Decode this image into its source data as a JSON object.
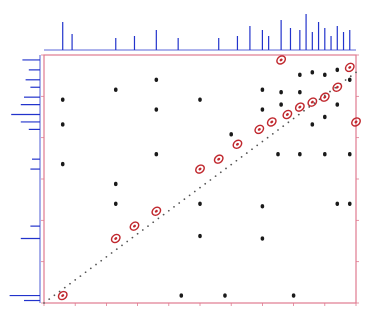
{
  "chart_data": {
    "type": "scatter",
    "subtype": "2d-nmr-contour",
    "title": "",
    "xlabel": "",
    "ylabel": "",
    "xlim": [
      0,
      100
    ],
    "ylim": [
      0,
      100
    ],
    "grid": false,
    "legend": "none",
    "colors": {
      "frame": "#e07a90",
      "projection": "#2233cc",
      "diagonal_peak": "#c0282e",
      "cross_peak": "#1a1a1a"
    },
    "series": [
      {
        "values": [
          {
            "x": 6,
            "y": 3
          },
          {
            "x": 23,
            "y": 26
          },
          {
            "x": 29,
            "y": 31
          },
          {
            "x": 36,
            "y": 37
          },
          {
            "x": 50,
            "y": 54
          },
          {
            "x": 56,
            "y": 58
          },
          {
            "x": 62,
            "y": 64
          },
          {
            "x": 69,
            "y": 70
          },
          {
            "x": 73,
            "y": 73
          },
          {
            "x": 78,
            "y": 76
          },
          {
            "x": 82,
            "y": 79
          },
          {
            "x": 86,
            "y": 81
          },
          {
            "x": 90,
            "y": 83
          },
          {
            "x": 94,
            "y": 87
          },
          {
            "x": 76,
            "y": 98
          },
          {
            "x": 98,
            "y": 95
          },
          {
            "x": 100,
            "y": 73
          }
        ]
      },
      {
        "values": [
          {
            "x": 6,
            "y": 82
          },
          {
            "x": 6,
            "y": 72
          },
          {
            "x": 6,
            "y": 56
          },
          {
            "x": 23,
            "y": 86
          },
          {
            "x": 23,
            "y": 48
          },
          {
            "x": 23,
            "y": 40
          },
          {
            "x": 36,
            "y": 90
          },
          {
            "x": 36,
            "y": 78
          },
          {
            "x": 36,
            "y": 60
          },
          {
            "x": 50,
            "y": 82
          },
          {
            "x": 50,
            "y": 40
          },
          {
            "x": 50,
            "y": 27
          },
          {
            "x": 70,
            "y": 86
          },
          {
            "x": 70,
            "y": 78
          },
          {
            "x": 70,
            "y": 39
          },
          {
            "x": 70,
            "y": 26
          },
          {
            "x": 76,
            "y": 85
          },
          {
            "x": 76,
            "y": 80
          },
          {
            "x": 82,
            "y": 92
          },
          {
            "x": 82,
            "y": 85
          },
          {
            "x": 82,
            "y": 60
          },
          {
            "x": 86,
            "y": 93
          },
          {
            "x": 86,
            "y": 72
          },
          {
            "x": 90,
            "y": 92
          },
          {
            "x": 90,
            "y": 75
          },
          {
            "x": 90,
            "y": 60
          },
          {
            "x": 94,
            "y": 94
          },
          {
            "x": 94,
            "y": 80
          },
          {
            "x": 94,
            "y": 40
          },
          {
            "x": 98,
            "y": 90
          },
          {
            "x": 98,
            "y": 60
          },
          {
            "x": 98,
            "y": 40
          },
          {
            "x": 75,
            "y": 60
          },
          {
            "x": 60,
            "y": 68
          },
          {
            "x": 44,
            "y": 3
          },
          {
            "x": 58,
            "y": 3
          },
          {
            "x": 80,
            "y": 3
          }
        ]
      }
    ],
    "projection_top": [
      {
        "x": 6,
        "h": 0.7
      },
      {
        "x": 9,
        "h": 0.4
      },
      {
        "x": 23,
        "h": 0.3
      },
      {
        "x": 29,
        "h": 0.35
      },
      {
        "x": 36,
        "h": 0.5
      },
      {
        "x": 43,
        "h": 0.3
      },
      {
        "x": 56,
        "h": 0.3
      },
      {
        "x": 62,
        "h": 0.35
      },
      {
        "x": 66,
        "h": 0.6
      },
      {
        "x": 70,
        "h": 0.5
      },
      {
        "x": 72,
        "h": 0.35
      },
      {
        "x": 76,
        "h": 0.75
      },
      {
        "x": 79,
        "h": 0.55
      },
      {
        "x": 82,
        "h": 0.5
      },
      {
        "x": 84,
        "h": 0.9
      },
      {
        "x": 86,
        "h": 0.45
      },
      {
        "x": 88,
        "h": 0.7
      },
      {
        "x": 90,
        "h": 0.55
      },
      {
        "x": 92,
        "h": 0.35
      },
      {
        "x": 94,
        "h": 0.6
      },
      {
        "x": 96,
        "h": 0.45
      },
      {
        "x": 98,
        "h": 0.5
      }
    ],
    "projection_left": [
      {
        "y": 98,
        "h": 0.55
      },
      {
        "y": 94,
        "h": 0.35
      },
      {
        "y": 90,
        "h": 0.45
      },
      {
        "y": 87,
        "h": 0.3
      },
      {
        "y": 83,
        "h": 0.5
      },
      {
        "y": 80,
        "h": 0.6
      },
      {
        "y": 76,
        "h": 0.9
      },
      {
        "y": 73,
        "h": 0.6
      },
      {
        "y": 70,
        "h": 0.35
      },
      {
        "y": 58,
        "h": 0.25
      },
      {
        "y": 54,
        "h": 0.3
      },
      {
        "y": 26,
        "h": 0.6
      },
      {
        "y": 31,
        "h": 0.3
      },
      {
        "y": 3,
        "h": 0.95
      },
      {
        "y": 1,
        "h": 0.5
      }
    ],
    "diagonal_trace": true
  }
}
